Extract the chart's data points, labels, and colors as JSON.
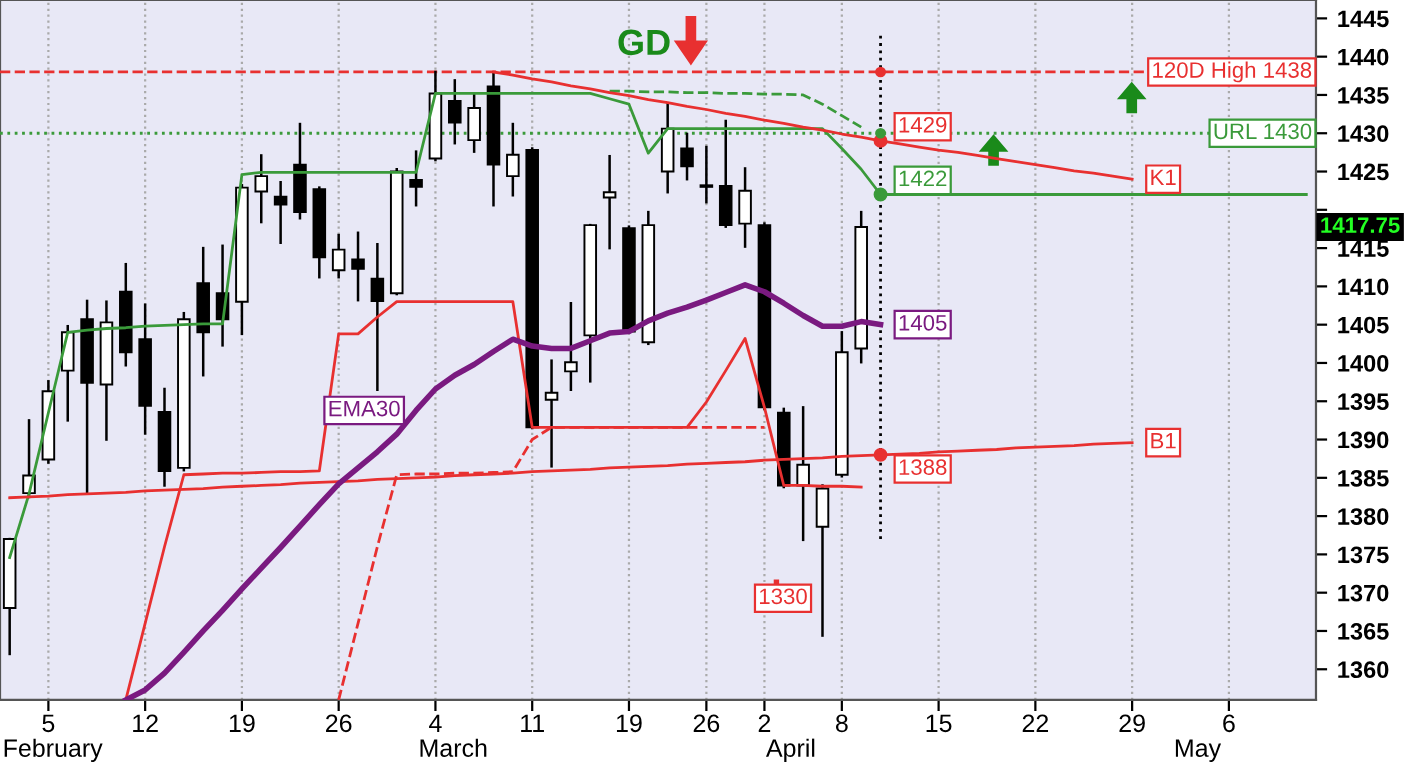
{
  "chart_data": {
    "type": "candlestick",
    "categories": [
      null,
      null,
      "5",
      null,
      null,
      null,
      null,
      "12",
      null,
      null,
      null,
      null,
      "19",
      null,
      null,
      null,
      null,
      "26",
      null,
      null,
      null,
      null,
      "4",
      null,
      null,
      null,
      null,
      "11",
      null,
      null,
      null,
      null,
      "19",
      null,
      null,
      null,
      "26",
      null,
      null,
      "2",
      null,
      null,
      null,
      "8",
      null,
      null,
      null,
      null,
      "15",
      null,
      null,
      null,
      null,
      "22",
      null,
      null,
      null,
      null,
      "29",
      null,
      null,
      null,
      null,
      "6",
      null,
      null,
      null,
      null
    ],
    "ylim": [
      1356,
      1447.4
    ],
    "yticks": [
      1360,
      1365,
      1370,
      1375,
      1380,
      1385,
      1390,
      1395,
      1400,
      1405,
      1410,
      1415,
      {
        "value": 1420,
        "label": null
      },
      1425,
      1430,
      1435,
      1440,
      1445
    ],
    "grid": "x",
    "legend": false,
    "ohlc": [
      [
        1368,
        1377,
        1362,
        1377
      ],
      [
        1383,
        1392.5,
        1382.5,
        1385.3
      ],
      [
        1387.4,
        1397.6,
        1387,
        1396.3
      ],
      [
        1399,
        1404.8,
        1392.5,
        1404
      ],
      [
        1405.7,
        1408.1,
        1383,
        1397.4
      ],
      [
        1397.2,
        1408,
        1390,
        1405.3
      ],
      [
        1409.3,
        1412.9,
        1399.7,
        1401.4
      ],
      [
        1403.1,
        1407.6,
        1390.8,
        1394.4
      ],
      [
        1393.6,
        1396.6,
        1384,
        1385.9
      ],
      [
        1386.3,
        1406.5,
        1386,
        1405.7
      ],
      [
        1410.4,
        1415,
        1398.4,
        1404
      ],
      [
        1409.1,
        1415.3,
        1402.3,
        1405.7
      ],
      [
        1408,
        1423.2,
        1403.8,
        1422.9
      ],
      [
        1422.4,
        1427.1,
        1418.4,
        1424.4
      ],
      [
        1421.7,
        1423.6,
        1415.7,
        1420.7
      ],
      [
        1425.9,
        1431.2,
        1418.9,
        1419.7
      ],
      [
        1422.7,
        1422.9,
        1411.2,
        1413.8
      ],
      [
        1412.1,
        1416.7,
        1411.2,
        1414.8
      ],
      [
        1413.5,
        1417,
        1408.2,
        1412.3
      ],
      [
        1411,
        1415.5,
        1396.5,
        1408.1
      ],
      [
        1409.1,
        1425.3,
        1409,
        1425
      ],
      [
        1423.9,
        1427.6,
        1420.6,
        1423
      ],
      [
        1426.7,
        1438,
        1426.5,
        1435.2
      ],
      [
        1434.2,
        1436.9,
        1428.7,
        1431.4
      ],
      [
        1429.1,
        1435,
        1427.6,
        1433.3
      ],
      [
        1436.1,
        1437.9,
        1420.6,
        1425.9
      ],
      [
        1424.4,
        1431.2,
        1421.9,
        1427.2
      ],
      [
        1427.8,
        1428,
        1391.5,
        1391.6
      ],
      [
        1395.2,
        1400.3,
        1386.5,
        1396.1
      ],
      [
        1398.9,
        1407.8,
        1396.5,
        1400.1
      ],
      [
        1403.6,
        1418,
        1397.6,
        1418
      ],
      [
        1421.6,
        1427,
        1415,
        1422.3
      ],
      [
        1417.6,
        1417.8,
        1404,
        1404.1
      ],
      [
        1402.7,
        1419.7,
        1402.5,
        1418
      ],
      [
        1425,
        1433.8,
        1422.3,
        1430.6
      ],
      [
        1428,
        1429.9,
        1424,
        1425.7
      ],
      [
        1423.2,
        1428.2,
        1421,
        1423
      ],
      [
        1423.1,
        1431.6,
        1417.8,
        1418
      ],
      [
        1418.2,
        1425.4,
        1415.2,
        1422.5
      ],
      [
        1418,
        1418.2,
        1394,
        1394.2
      ],
      [
        1393.5,
        1394,
        1383.8,
        1384
      ],
      [
        1384,
        1394.2,
        1376.9,
        1386.7
      ],
      [
        1378.6,
        1384,
        1364.4,
        1383.6
      ],
      [
        1385.4,
        1404,
        1385.2,
        1401.4
      ],
      [
        1401.9,
        1419.7,
        1400.1,
        1417.75
      ],
      null,
      null,
      null,
      null,
      null,
      null,
      null,
      null,
      null,
      null,
      null,
      null,
      null,
      null,
      null,
      null,
      null,
      null,
      null,
      null,
      null,
      null,
      null
    ],
    "series": [
      {
        "type": "line",
        "color": "#3a9a3a",
        "line_style": "solid",
        "values": [
          1374.6,
          1382.9,
          1393.5,
          1404,
          1404.3,
          1404.5,
          1404.6,
          1404.8,
          1404.9,
          1405,
          1405.1,
          1405.1,
          1424.6,
          1424.9,
          1424.9,
          1424.9,
          1424.9,
          1424.9,
          1424.9,
          1424.9,
          1424.9,
          1424.9,
          1435.2,
          1435.2,
          1435.2,
          1435.2,
          1435.2,
          1435.2,
          1435.2,
          1435.2,
          1435.2,
          1434.5,
          1433.8,
          1427.4,
          1430.6,
          1430.6,
          1430.6,
          1430.6,
          1430.6,
          1430.6,
          1430.6,
          1430.6,
          1430.6,
          1428,
          1425.3,
          1422,
          1422,
          1422,
          1422,
          1422,
          1422,
          1422,
          1422,
          1422,
          1422,
          1422,
          1422,
          1422,
          1422,
          1422,
          1422,
          1422,
          1422,
          1422,
          1422,
          1422,
          1422,
          1422
        ],
        "value_labels": [
          null,
          null,
          null,
          null,
          null,
          null,
          null,
          null,
          null,
          null,
          null,
          null,
          null,
          null,
          null,
          null,
          null,
          null,
          null,
          null,
          null,
          null,
          null,
          null,
          null,
          null,
          null,
          null,
          null,
          null,
          null,
          null,
          null,
          null,
          null,
          null,
          null,
          null,
          null,
          null,
          null,
          null,
          null,
          null,
          null,
          "1422",
          null,
          null,
          null,
          null,
          null,
          null,
          null,
          null,
          null,
          null,
          null,
          null,
          null,
          null,
          null,
          null,
          null,
          null,
          null,
          null,
          null,
          null
        ]
      },
      {
        "type": "line",
        "color": "#3a9a3a",
        "line_style": "dashed",
        "values": [
          null,
          null,
          null,
          null,
          null,
          null,
          null,
          null,
          null,
          null,
          null,
          null,
          null,
          null,
          null,
          null,
          null,
          null,
          null,
          null,
          null,
          null,
          null,
          null,
          null,
          null,
          null,
          null,
          null,
          null,
          null,
          1435.5,
          1435.5,
          1435.4,
          1435.4,
          1435.3,
          1435.3,
          1435.2,
          1435.2,
          1435.1,
          1435.1,
          1435,
          1433.8,
          1432.3,
          1430.8,
          null,
          null,
          null,
          null,
          null,
          null,
          null,
          null,
          null,
          null,
          null,
          null,
          null,
          null,
          null,
          null,
          null,
          null,
          null,
          null,
          null,
          null,
          null
        ]
      },
      {
        "type": "line",
        "color": "#e83030",
        "line_style": "solid",
        "values": [
          null,
          null,
          null,
          null,
          null,
          null,
          null,
          null,
          null,
          null,
          null,
          null,
          null,
          null,
          null,
          null,
          null,
          null,
          null,
          null,
          null,
          null,
          null,
          null,
          null,
          1438,
          1437.6,
          1437.1,
          1436.7,
          1436.2,
          1435.8,
          1435.3,
          1434.9,
          1434.4,
          1434,
          1433.5,
          1433.1,
          1432.6,
          1432.2,
          1431.7,
          1431.3,
          1430.8,
          1430.4,
          1429.9,
          1429.5,
          1429,
          1428.6,
          1428.2,
          1427.8,
          1427.5,
          1427.1,
          1426.7,
          1426.3,
          1425.9,
          1425.5,
          1425.1,
          1424.8,
          1424.4,
          1424,
          null,
          null,
          null,
          null,
          null,
          null,
          null,
          null,
          null
        ],
        "value_labels": [
          null,
          null,
          null,
          null,
          null,
          null,
          null,
          null,
          null,
          null,
          null,
          null,
          null,
          null,
          null,
          null,
          null,
          null,
          null,
          null,
          null,
          null,
          null,
          null,
          null,
          null,
          null,
          null,
          null,
          null,
          null,
          null,
          null,
          null,
          null,
          null,
          null,
          null,
          null,
          null,
          null,
          null,
          null,
          null,
          null,
          "1429",
          null,
          null,
          null,
          null,
          null,
          null,
          null,
          null,
          null,
          null,
          null,
          null,
          "K1",
          null,
          null,
          null,
          null,
          null,
          null,
          null,
          null,
          null
        ]
      },
      {
        "type": "line",
        "color": "#e83030",
        "line_style": "solid",
        "values": [
          1382.4,
          1382.5,
          1382.6,
          1382.8,
          1382.9,
          1383,
          1383.1,
          1383.3,
          1383.4,
          1383.5,
          1383.6,
          1383.8,
          1383.9,
          1384,
          1384.1,
          1384.3,
          1384.4,
          1384.5,
          1384.6,
          1384.8,
          1384.9,
          1385,
          1385.1,
          1385.3,
          1385.4,
          1385.5,
          1385.6,
          1385.8,
          1385.9,
          1386,
          1386.1,
          1386.3,
          1386.4,
          1386.5,
          1386.6,
          1386.8,
          1386.9,
          1387,
          1387.1,
          1387.3,
          1387.4,
          1387.5,
          1387.6,
          1387.8,
          1387.9,
          1388,
          1388.1,
          1388.2,
          1388.4,
          1388.5,
          1388.6,
          1388.7,
          1388.9,
          1389,
          1389.1,
          1389.2,
          1389.4,
          1389.5,
          1389.6,
          null,
          null,
          null,
          null,
          null,
          null,
          null,
          null,
          null
        ],
        "value_labels": [
          null,
          null,
          null,
          null,
          null,
          null,
          null,
          null,
          null,
          null,
          null,
          null,
          null,
          null,
          null,
          null,
          null,
          null,
          null,
          null,
          null,
          null,
          null,
          null,
          null,
          null,
          null,
          null,
          null,
          null,
          null,
          null,
          null,
          null,
          null,
          null,
          null,
          null,
          null,
          null,
          null,
          null,
          null,
          null,
          null,
          "1388",
          null,
          null,
          null,
          null,
          null,
          null,
          null,
          null,
          null,
          null,
          null,
          null,
          "B1",
          null,
          null,
          null,
          null,
          null,
          null,
          null,
          null,
          null
        ]
      },
      {
        "type": "line",
        "color": "#e83030",
        "line_style": "solid",
        "values": [
          null,
          null,
          null,
          null,
          null,
          null,
          1356,
          1366,
          1376,
          1385.4,
          1385.5,
          1385.6,
          1385.6,
          1385.7,
          1385.8,
          1385.8,
          1385.9,
          1403.8,
          1403.8,
          1406,
          1408,
          1408,
          1408,
          1408,
          1408,
          1408,
          1408,
          1391.6,
          1391.6,
          1391.6,
          1391.6,
          1391.6,
          1391.6,
          1391.6,
          1391.6,
          1391.6,
          1394.9,
          1399,
          1403.2,
          1394.2,
          1384,
          1384,
          1383.9,
          1383.9,
          1383.8,
          null,
          null,
          null,
          null,
          null,
          null,
          null,
          null,
          null,
          null,
          null,
          null,
          null,
          null,
          null,
          null,
          null,
          null,
          null,
          null,
          null,
          null,
          null
        ]
      },
      {
        "type": "line",
        "color": "#e83030",
        "line_style": "dashed",
        "values": [
          null,
          null,
          null,
          null,
          null,
          null,
          null,
          null,
          null,
          null,
          null,
          null,
          null,
          null,
          null,
          null,
          null,
          1356,
          1366,
          1376,
          1385.4,
          1385.5,
          1385.5,
          1385.6,
          1385.6,
          1385.7,
          1385.8,
          1390,
          1391.6,
          1391.6,
          1391.6,
          1391.6,
          1391.6,
          1391.6,
          1391.6,
          1391.6,
          1391.6,
          1391.6,
          1391.6,
          1391.6,
          null,
          null,
          null,
          null,
          null,
          null,
          null,
          null,
          null,
          null,
          null,
          null,
          null,
          null,
          null,
          null,
          null,
          null,
          null,
          null,
          null,
          null,
          null,
          null,
          null,
          null,
          null,
          null
        ]
      },
      {
        "type": "line",
        "name": "EMA30",
        "color": "#7a1a80",
        "line_style": "solid",
        "values": [
          null,
          null,
          null,
          null,
          null,
          null,
          1356,
          1357.3,
          1359.5,
          1362.2,
          1365,
          1367.7,
          1370.5,
          1373.2,
          1375.9,
          1378.7,
          1381.5,
          1384.2,
          1386.3,
          1388.4,
          1390.7,
          1393.8,
          1396.6,
          1398.4,
          1399.8,
          1401.5,
          1403.1,
          1402.2,
          1401.9,
          1401.9,
          1402.9,
          1403.9,
          1404.1,
          1405.5,
          1406.5,
          1407.3,
          1408.2,
          1409.2,
          1410.2,
          1409.3,
          1407.8,
          1406.2,
          1404.8,
          1404.8,
          1405.4,
          1405,
          null,
          null,
          null,
          null,
          null,
          null,
          null,
          null,
          null,
          null,
          null,
          null,
          null,
          null,
          null,
          null,
          null,
          null,
          null,
          null,
          null,
          null
        ],
        "value_labels": [
          null,
          null,
          null,
          null,
          null,
          null,
          null,
          null,
          null,
          null,
          null,
          null,
          null,
          null,
          null,
          null,
          null,
          null,
          null,
          null,
          null,
          null,
          null,
          null,
          null,
          null,
          null,
          null,
          null,
          null,
          null,
          null,
          null,
          null,
          null,
          null,
          null,
          null,
          null,
          null,
          null,
          null,
          null,
          null,
          null,
          "1405",
          null,
          null,
          null,
          null,
          null,
          null,
          null,
          null,
          null,
          null,
          null,
          null,
          null,
          null,
          null,
          null,
          null,
          null,
          null,
          null,
          null,
          null
        ]
      }
    ],
    "ref_lines": [
      {
        "axis": "y",
        "value": 1438,
        "label": "120D High 1438",
        "color": "#e83030",
        "line_style": "dashed"
      },
      {
        "axis": "y",
        "value": 1430,
        "label": "URL 1430",
        "color": "#3a9a3a",
        "line_style": "dotted"
      }
    ],
    "annotations": [
      "GD",
      "1330",
      "1417.75",
      "February",
      "March",
      "April",
      "May"
    ]
  }
}
